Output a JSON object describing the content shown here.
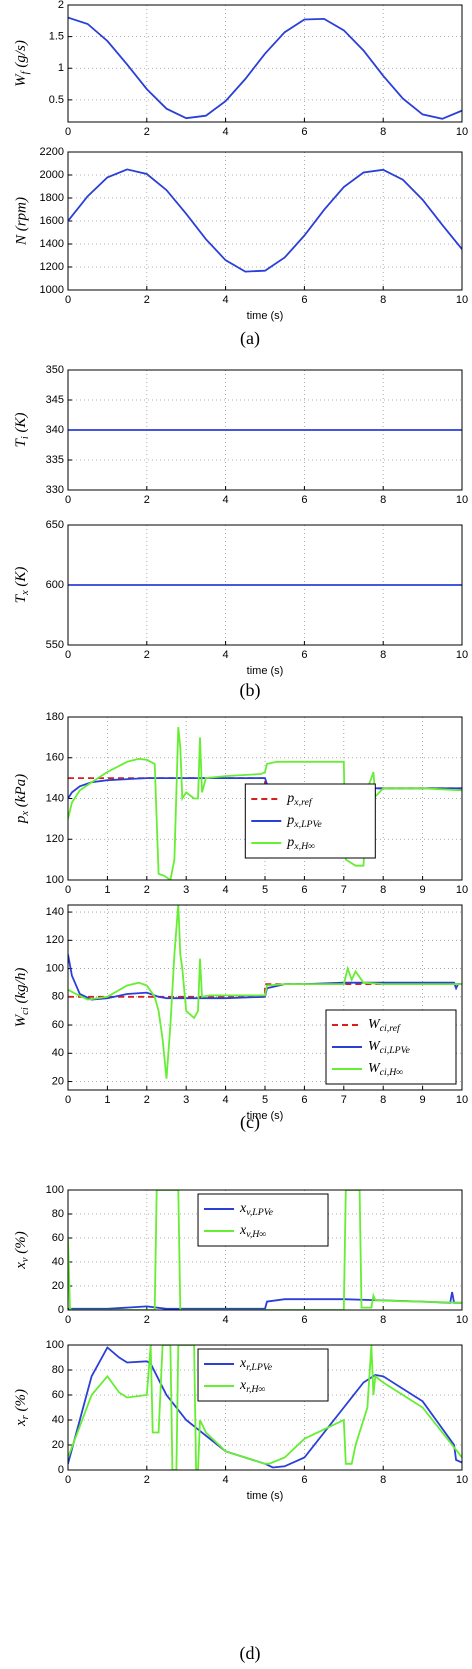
{
  "chart_data": [
    {
      "type": "line",
      "ylabel": "Wf (g/s)",
      "x": [
        0,
        0.5,
        1,
        1.5,
        2,
        2.5,
        3,
        3.5,
        4,
        4.5,
        5,
        5.5,
        6,
        6.5,
        7,
        7.5,
        8,
        8.5,
        9,
        9.5,
        10
      ],
      "series": [
        {
          "color": "#2a3fd8",
          "values": [
            1.8,
            1.7,
            1.43,
            1.06,
            0.67,
            0.36,
            0.21,
            0.25,
            0.48,
            0.83,
            1.23,
            1.57,
            1.77,
            1.78,
            1.6,
            1.28,
            0.88,
            0.52,
            0.27,
            0.2,
            0.33
          ]
        }
      ],
      "xlim": [
        0,
        10
      ],
      "xticks": [
        0,
        2,
        4,
        6,
        8,
        10
      ],
      "ylim": [
        0.15,
        2
      ],
      "yticks": [
        0.5,
        1,
        1.5,
        2
      ],
      "grid": true
    },
    {
      "type": "line",
      "ylabel": "N (rpm)",
      "xlabel": "time (s)",
      "x": [
        0,
        0.5,
        1,
        1.5,
        2,
        2.5,
        3,
        3.5,
        4,
        4.5,
        5,
        5.5,
        6,
        6.5,
        7,
        7.5,
        8,
        8.5,
        9,
        9.5,
        10
      ],
      "series": [
        {
          "color": "#2a3fd8",
          "values": [
            1600,
            1816,
            1979,
            2049,
            2009,
            1869,
            1663,
            1442,
            1259,
            1160,
            1168,
            1283,
            1474,
            1697,
            1896,
            2022,
            2045,
            1959,
            1785,
            1566,
            1355
          ]
        }
      ],
      "xlim": [
        0,
        10
      ],
      "xticks": [
        0,
        2,
        4,
        6,
        8,
        10
      ],
      "ylim": [
        1000,
        2200
      ],
      "yticks": [
        1000,
        1200,
        1400,
        1600,
        1800,
        2000,
        2200
      ],
      "grid": true
    },
    {
      "type": "line",
      "ylabel": "Ti (K)",
      "x": [
        0,
        10
      ],
      "series": [
        {
          "color": "#2a3fd8",
          "values": [
            340,
            340
          ]
        }
      ],
      "xlim": [
        0,
        10
      ],
      "xticks": [
        0,
        2,
        4,
        6,
        8,
        10
      ],
      "ylim": [
        330,
        350
      ],
      "yticks": [
        330,
        335,
        340,
        345,
        350
      ],
      "grid": true
    },
    {
      "type": "line",
      "ylabel": "Tx (K)",
      "xlabel": "time (s)",
      "x": [
        0,
        10
      ],
      "series": [
        {
          "color": "#2a3fd8",
          "values": [
            600,
            600
          ]
        }
      ],
      "xlim": [
        0,
        10
      ],
      "xticks": [
        0,
        2,
        4,
        6,
        8,
        10
      ],
      "ylim": [
        550,
        650
      ],
      "yticks": [
        550,
        600,
        650
      ],
      "grid": true
    },
    {
      "type": "line",
      "ylabel": "px (kPa)",
      "legend": "lower center",
      "series": [
        {
          "name": "px,ref",
          "color": "#d62020",
          "dashed": true,
          "x": [
            0,
            5,
            5,
            10
          ],
          "values": [
            150,
            150,
            145,
            145
          ]
        },
        {
          "name": "px,LPVe",
          "color": "#2a3fd8",
          "x": [
            0,
            0.1,
            0.3,
            0.6,
            1,
            2,
            3,
            4,
            5,
            5.05,
            5.3,
            6,
            7,
            8,
            9,
            10
          ],
          "values": [
            140,
            143,
            146,
            148,
            149,
            150,
            150,
            150,
            150,
            147,
            145,
            145,
            145,
            145,
            145,
            145
          ]
        },
        {
          "name": "px,H∞",
          "color": "#66ee33",
          "x": [
            0,
            0.1,
            0.3,
            0.6,
            1,
            1.5,
            1.8,
            2,
            2.2,
            2.3,
            2.45,
            2.6,
            2.7,
            2.8,
            2.85,
            2.9,
            3.0,
            3.2,
            3.3,
            3.35,
            3.4,
            3.5,
            4,
            4.9,
            5,
            5.05,
            5.3,
            6,
            7,
            7.05,
            7.3,
            7.5,
            7.6,
            7.7,
            7.75,
            7.8,
            7.9,
            8,
            9,
            10
          ],
          "values": [
            130,
            138,
            144,
            148,
            153,
            158,
            159.5,
            159,
            157,
            103,
            102,
            100,
            110,
            175,
            165,
            140,
            143,
            140,
            140,
            170,
            143,
            150,
            151,
            152,
            153,
            157,
            158,
            158,
            158,
            110,
            107,
            107,
            145,
            150,
            153,
            141,
            143,
            145,
            145,
            144
          ]
        }
      ],
      "xlim": [
        0,
        10
      ],
      "xticks": [
        0,
        1,
        2,
        3,
        4,
        5,
        6,
        7,
        8,
        9,
        10
      ],
      "ylim": [
        100,
        180
      ],
      "yticks": [
        100,
        120,
        140,
        160,
        180
      ],
      "grid": true
    },
    {
      "type": "line",
      "ylabel": "Wci (kg/h)",
      "xlabel": "time (s)",
      "legend": "lower right",
      "series": [
        {
          "name": "Wci,ref",
          "color": "#d62020",
          "dashed": true,
          "x": [
            0,
            5,
            5,
            10
          ],
          "values": [
            80,
            80,
            89,
            89
          ]
        },
        {
          "name": "Wci,LPVe",
          "color": "#2a3fd8",
          "x": [
            0,
            0.1,
            0.3,
            0.6,
            1,
            1.5,
            2,
            2.3,
            2.5,
            3,
            4,
            5,
            5.05,
            5.5,
            6,
            7,
            8,
            9,
            9.8,
            9.85,
            9.9,
            10
          ],
          "values": [
            110,
            95,
            82,
            78,
            79,
            82,
            83,
            80,
            79,
            79,
            79,
            80,
            86,
            89,
            89,
            90,
            90,
            90,
            90,
            86,
            89,
            89
          ]
        },
        {
          "name": "Wci,H∞",
          "color": "#66ee33",
          "x": [
            0,
            0.2,
            0.5,
            1,
            1.5,
            1.8,
            2,
            2.2,
            2.3,
            2.4,
            2.5,
            2.6,
            2.7,
            2.8,
            2.85,
            2.9,
            3,
            3.2,
            3.3,
            3.35,
            3.4,
            3.6,
            4,
            5,
            5.05,
            5.5,
            6,
            7,
            7.1,
            7.2,
            7.3,
            7.5,
            8,
            9,
            10
          ],
          "values": [
            85,
            82,
            78,
            80,
            88,
            90,
            88,
            80,
            70,
            50,
            22,
            60,
            110,
            146,
            110,
            100,
            70,
            65,
            70,
            107,
            80,
            81,
            81,
            81,
            88,
            89,
            89,
            89,
            100,
            92,
            98,
            90,
            89,
            89,
            89
          ]
        }
      ],
      "xlim": [
        0,
        10
      ],
      "xticks": [
        0,
        1,
        2,
        3,
        4,
        5,
        6,
        7,
        8,
        9,
        10
      ],
      "ylim": [
        14,
        145
      ],
      "yticks": [
        20,
        40,
        60,
        80,
        100,
        120,
        140
      ],
      "grid": true
    },
    {
      "type": "line",
      "ylabel": "xv (%)",
      "legend": "upper center",
      "series": [
        {
          "name": "xv,LPVe",
          "color": "#2a3fd8",
          "x": [
            0,
            1,
            2,
            2.5,
            3,
            4,
            5,
            5.05,
            5.5,
            6,
            7,
            8,
            9,
            9.7,
            9.75,
            9.8,
            10
          ],
          "values": [
            1,
            1,
            3,
            1,
            1,
            1,
            1,
            7,
            9,
            9,
            9,
            8,
            7,
            6,
            15,
            6,
            6
          ]
        },
        {
          "name": "xv,H∞",
          "color": "#66ee33",
          "x": [
            0,
            0.05,
            0.1,
            0.2,
            2.2,
            2.25,
            2.8,
            2.85,
            4,
            7,
            7.05,
            7.4,
            7.45,
            7.7,
            7.75,
            7.8,
            10
          ],
          "values": [
            60,
            1,
            0,
            0,
            0,
            100,
            100,
            0,
            0,
            0,
            100,
            100,
            2,
            2,
            12,
            8,
            6
          ]
        }
      ],
      "xlim": [
        0,
        10
      ],
      "xticks": [
        0,
        2,
        4,
        6,
        8,
        10
      ],
      "ylim": [
        0,
        100
      ],
      "yticks": [
        0,
        20,
        40,
        60,
        80,
        100
      ],
      "grid": true
    },
    {
      "type": "line",
      "ylabel": "xr (%)",
      "xlabel": "time (s)",
      "legend": "upper center",
      "series": [
        {
          "name": "xr,LPVe",
          "color": "#2a3fd8",
          "x": [
            0,
            0.3,
            0.6,
            1,
            1.3,
            1.5,
            2,
            2.1,
            2.5,
            3,
            4,
            5,
            5.2,
            5.5,
            6,
            7,
            7.5,
            7.8,
            8,
            9,
            9.8,
            9.85,
            10
          ],
          "values": [
            5,
            40,
            75,
            98,
            90,
            86,
            87,
            85,
            60,
            40,
            15,
            5,
            2,
            3,
            10,
            50,
            70,
            76,
            75,
            55,
            20,
            8,
            6
          ]
        },
        {
          "name": "xr,H∞",
          "color": "#66ee33",
          "x": [
            0,
            0.3,
            0.6,
            1,
            1.3,
            1.5,
            2,
            2.1,
            2.15,
            2.3,
            2.4,
            2.6,
            2.65,
            2.75,
            2.8,
            3.2,
            3.25,
            3.3,
            3.35,
            3.5,
            4,
            5,
            5.1,
            5.5,
            6,
            7,
            7.05,
            7.2,
            7.3,
            7.6,
            7.7,
            7.75,
            7.8,
            8,
            9,
            10
          ],
          "values": [
            10,
            35,
            60,
            75,
            62,
            58,
            60,
            100,
            30,
            30,
            100,
            100,
            0,
            0,
            100,
            100,
            0,
            0,
            40,
            30,
            15,
            5,
            5,
            10,
            25,
            40,
            5,
            5,
            20,
            50,
            100,
            60,
            75,
            70,
            50,
            10
          ]
        }
      ],
      "xlim": [
        0,
        10
      ],
      "xticks": [
        0,
        2,
        4,
        6,
        8,
        10
      ],
      "ylim": [
        0,
        100
      ],
      "yticks": [
        0,
        20,
        40,
        60,
        80,
        100
      ],
      "grid": true
    }
  ],
  "captions": [
    "(a)",
    "(b)",
    "(c)",
    "(d)"
  ]
}
